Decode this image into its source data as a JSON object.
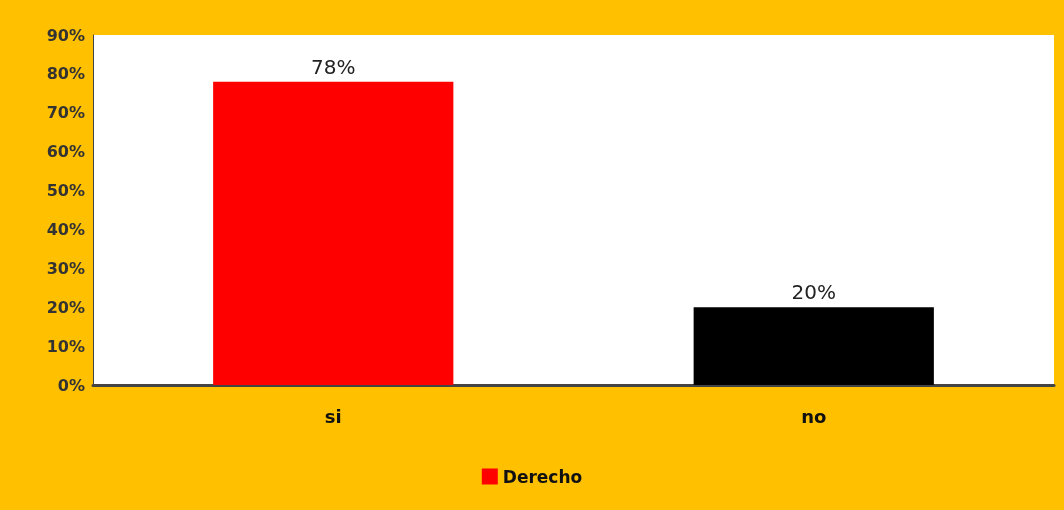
{
  "chart_data": {
    "type": "bar",
    "categories": [
      "si",
      "no"
    ],
    "series": [
      {
        "name": "Derecho",
        "color": "#ff0000",
        "colors": [
          "#ff0000",
          "#000000"
        ],
        "values": [
          78,
          20
        ],
        "value_labels": [
          "78%",
          "20%"
        ]
      }
    ],
    "ylim": [
      0,
      90
    ],
    "yticks": [
      {
        "value": 0,
        "label": "0%"
      },
      {
        "value": 10,
        "label": "10%"
      },
      {
        "value": 20,
        "label": "20%"
      },
      {
        "value": 30,
        "label": "30%"
      },
      {
        "value": 40,
        "label": "40%"
      },
      {
        "value": 50,
        "label": "50%"
      },
      {
        "value": 60,
        "label": "60%"
      },
      {
        "value": 70,
        "label": "70%"
      },
      {
        "value": 80,
        "label": "80%"
      },
      {
        "value": 90,
        "label": "90%"
      }
    ],
    "grid": false,
    "legend": "bottom"
  }
}
